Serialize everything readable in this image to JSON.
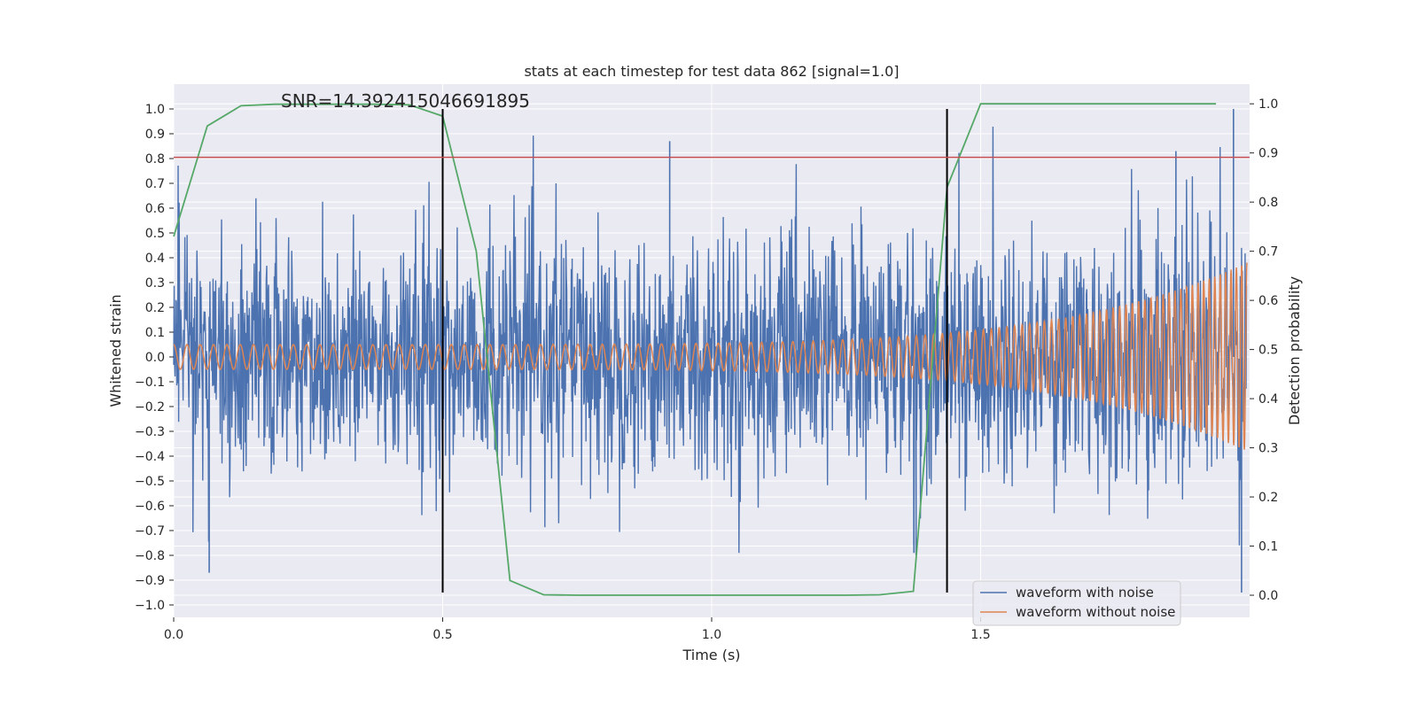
{
  "chart_data": {
    "type": "line",
    "title": "stats at each timestep for test data 862 [signal=1.0]",
    "xlabel": "Time (s)",
    "ylabel": "Whitened strain",
    "y2label": "Detection probability",
    "annotation": "SNR=14.392415046691895",
    "xlim": [
      0.0,
      2.0
    ],
    "ylim": [
      -1.05,
      1.1
    ],
    "y2lim": [
      -0.045,
      1.04
    ],
    "x_ticks": [
      "0.0",
      "0.5",
      "1.0",
      "1.5"
    ],
    "x_tick_values": [
      0.0,
      0.5,
      1.0,
      1.5
    ],
    "y_ticks": [
      "−1.0",
      "−0.9",
      "−0.8",
      "−0.7",
      "−0.6",
      "−0.5",
      "−0.4",
      "−0.3",
      "−0.2",
      "−0.1",
      "0.0",
      "0.1",
      "0.2",
      "0.3",
      "0.4",
      "0.5",
      "0.6",
      "0.7",
      "0.8",
      "0.9",
      "1.0"
    ],
    "y_tick_values": [
      -1.0,
      -0.9,
      -0.8,
      -0.7,
      -0.6,
      -0.5,
      -0.4,
      -0.3,
      -0.2,
      -0.1,
      0.0,
      0.1,
      0.2,
      0.3,
      0.4,
      0.5,
      0.6,
      0.7,
      0.8,
      0.9,
      1.0
    ],
    "y2_ticks": [
      "0.0",
      "0.1",
      "0.2",
      "0.3",
      "0.4",
      "0.5",
      "0.6",
      "0.7",
      "0.8",
      "0.9",
      "1.0"
    ],
    "y2_tick_values": [
      0.0,
      0.1,
      0.2,
      0.3,
      0.4,
      0.5,
      0.6,
      0.7,
      0.8,
      0.9,
      1.0
    ],
    "grid": true,
    "legend_placement": "lower right",
    "series": [
      {
        "name": "waveform with noise",
        "axis": "left",
        "color": "#4c72b0",
        "description": "dense noisy strain time series between roughly -0.95 and 1.0",
        "peaks": [
          [
            0.066,
            -0.87
          ],
          [
            0.922,
            0.87
          ],
          [
            1.376,
            -0.79
          ],
          [
            1.38,
            -0.8
          ],
          [
            1.863,
            0.83
          ],
          [
            1.97,
            1.0
          ],
          [
            1.985,
            -0.95
          ]
        ]
      },
      {
        "name": "waveform without noise",
        "axis": "left",
        "color": "#dd8452",
        "description": "chirp signal with amplitude rising from 0.05 to ~0.38 and frequency increasing toward the end",
        "amplitude_start": 0.05,
        "amplitude_end": 0.38,
        "cycles": 112
      },
      {
        "name": "detection probability",
        "axis": "right",
        "color": "#55a868",
        "x": [
          0.0,
          0.0625,
          0.125,
          0.1875,
          0.25,
          0.3125,
          0.375,
          0.4375,
          0.5,
          0.5625,
          0.625,
          0.6875,
          0.75,
          0.8125,
          0.875,
          0.9375,
          1.0,
          1.0625,
          1.125,
          1.1875,
          1.25,
          1.3125,
          1.375,
          1.4375,
          1.5,
          1.5625,
          1.625,
          1.6875,
          1.75,
          1.8125,
          1.875,
          1.9375
        ],
        "values": [
          0.73,
          0.955,
          0.996,
          0.999,
          0.999,
          0.999,
          0.999,
          0.998,
          0.975,
          0.7,
          0.03,
          0.001,
          0.0,
          0.0,
          0.0,
          0.0,
          0.0,
          0.0,
          0.0,
          0.0,
          0.0,
          0.001,
          0.008,
          0.83,
          1.0,
          1.0,
          1.0,
          1.0,
          1.0,
          1.0,
          1.0,
          1.0
        ]
      }
    ],
    "threshold": {
      "axis": "left",
      "value": 0.805,
      "color": "#c44e52"
    },
    "vertical_markers": [
      0.5,
      1.4375
    ],
    "colors": {
      "background": "#eaeaf2",
      "grid": "#ffffff",
      "marker": "#000000"
    }
  }
}
